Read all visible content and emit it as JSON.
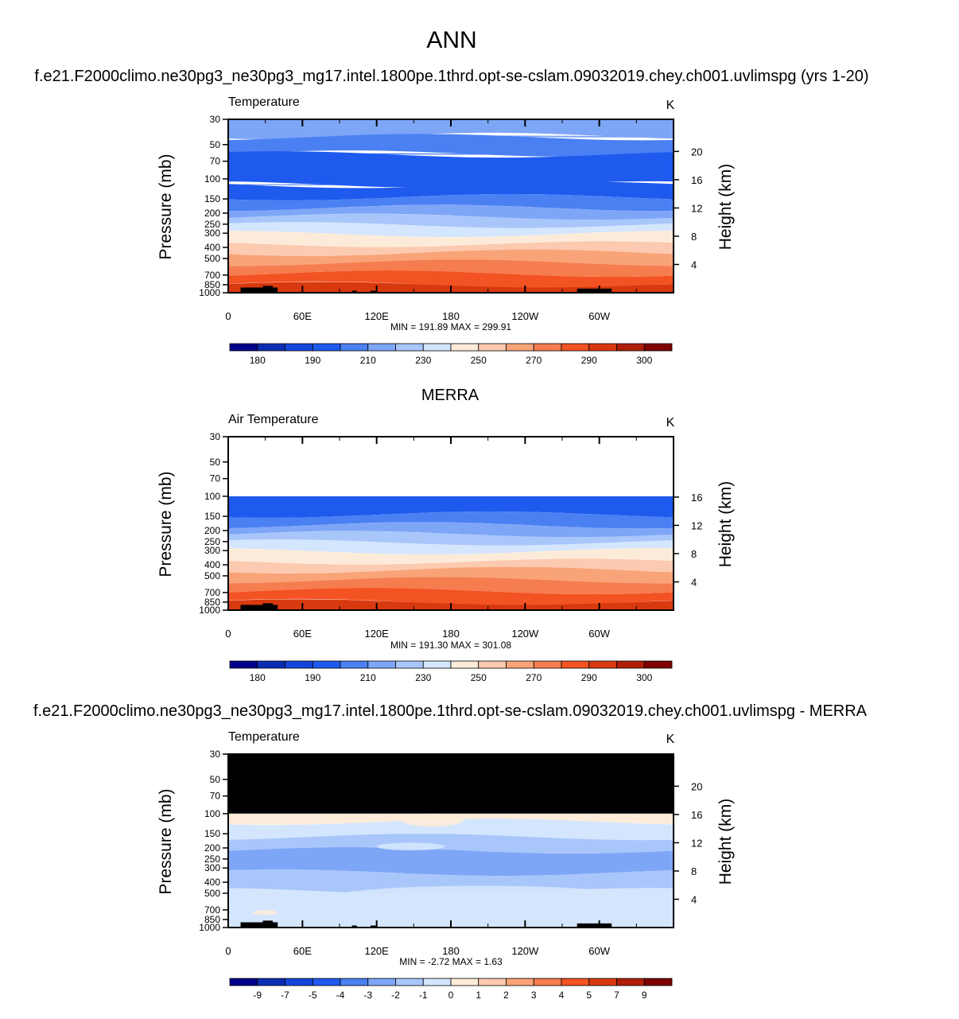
{
  "page": {
    "title": "ANN",
    "case_title": "f.e21.F2000climo.ne30pg3_ne30pg3_mg17.intel.1800pe.1thrd.opt-se-cslam.09032019.chey.ch001.uvlimspg (yrs 1-20)",
    "obs_title": "MERRA",
    "diff_title": "f.e21.F2000climo.ne30pg3_ne30pg3_mg17.intel.1800pe.1thrd.opt-se-cslam.09032019.chey.ch001.uvlimspg - MERRA"
  },
  "colors": {
    "palette": [
      "#00008b",
      "#0a2db4",
      "#1446dc",
      "#1e5aee",
      "#4a80f2",
      "#7ea6f7",
      "#a9c6fb",
      "#d4e6fd",
      "#fdebd9",
      "#fccab0",
      "#f9a478",
      "#f57d4f",
      "#f35222",
      "#d9390f",
      "#b01e08",
      "#7f0000"
    ],
    "black": "#000000"
  },
  "chart_data": [
    {
      "type": "contour",
      "panel": "top",
      "left_label": "Temperature",
      "units": "K",
      "ylabel": "Pressure (mb)",
      "y2label": "Height (km)",
      "x_ticks": [
        "0",
        "60E",
        "120E",
        "180",
        "120W",
        "60W"
      ],
      "x_range": [
        0,
        360
      ],
      "y_ticks": [
        "30",
        "50",
        "70",
        "100",
        "150",
        "200",
        "250",
        "300",
        "400",
        "500",
        "700",
        "850",
        "1000"
      ],
      "y_scale": "log",
      "y_range": [
        30,
        1000
      ],
      "height_ticks": [
        "20",
        "16",
        "12",
        "8",
        "4"
      ],
      "height_values_km": [
        20,
        16,
        12,
        8,
        4
      ],
      "stats": "MIN = 191.89  MAX = 299.91",
      "min": 191.89,
      "max": 299.91,
      "colorbar_labels": [
        "180",
        "190",
        "210",
        "230",
        "250",
        "270",
        "290",
        "300"
      ],
      "bands": [
        {
          "p": 30,
          "i": 5
        },
        {
          "p": 42,
          "i": 5
        },
        {
          "p": 43,
          "i": 4
        },
        {
          "p": 60,
          "i": 4
        },
        {
          "p": 61,
          "i": 3
        },
        {
          "p": 112,
          "i": 3
        },
        {
          "p": 113,
          "i": 3
        },
        {
          "p": 145,
          "i": 4
        },
        {
          "p": 180,
          "i": 5
        },
        {
          "p": 215,
          "i": 6
        },
        {
          "p": 255,
          "i": 7
        },
        {
          "p": 305,
          "i": 8
        },
        {
          "p": 375,
          "i": 9
        },
        {
          "p": 445,
          "i": 10
        },
        {
          "p": 545,
          "i": 11
        },
        {
          "p": 680,
          "i": 12
        },
        {
          "p": 850,
          "i": 13
        },
        {
          "p": 1000,
          "i": 13
        }
      ]
    },
    {
      "type": "contour",
      "panel": "middle",
      "title": "MERRA",
      "left_label": "Air Temperature",
      "units": "K",
      "ylabel": "Pressure (mb)",
      "y2label": "Height (km)",
      "x_ticks": [
        "0",
        "60E",
        "120E",
        "180",
        "120W",
        "60W"
      ],
      "x_range": [
        0,
        360
      ],
      "y_ticks": [
        "30",
        "50",
        "70",
        "100",
        "150",
        "200",
        "250",
        "300",
        "400",
        "500",
        "700",
        "850",
        "1000"
      ],
      "y_scale": "log",
      "y_range": [
        30,
        1000
      ],
      "height_ticks": [
        "16",
        "12",
        "8",
        "4"
      ],
      "height_values_km": [
        16,
        12,
        8,
        4
      ],
      "missing_above_mb": 100,
      "stats": "MIN = 191.30  MAX = 301.08",
      "min": 191.3,
      "max": 301.08,
      "colorbar_labels": [
        "180",
        "190",
        "210",
        "230",
        "250",
        "270",
        "290",
        "300"
      ],
      "bands": [
        {
          "p": 100,
          "i": 3
        },
        {
          "p": 145,
          "i": 4
        },
        {
          "p": 180,
          "i": 5
        },
        {
          "p": 215,
          "i": 6
        },
        {
          "p": 255,
          "i": 7
        },
        {
          "p": 305,
          "i": 8
        },
        {
          "p": 375,
          "i": 9
        },
        {
          "p": 445,
          "i": 10
        },
        {
          "p": 545,
          "i": 11
        },
        {
          "p": 680,
          "i": 12
        },
        {
          "p": 850,
          "i": 13
        },
        {
          "p": 1000,
          "i": 13
        }
      ]
    },
    {
      "type": "contour",
      "panel": "bottom",
      "left_label": "Temperature",
      "units": "K",
      "ylabel": "Pressure (mb)",
      "y2label": "Height (km)",
      "x_ticks": [
        "0",
        "60E",
        "120E",
        "180",
        "120W",
        "60W"
      ],
      "x_range": [
        0,
        360
      ],
      "y_ticks": [
        "30",
        "50",
        "70",
        "100",
        "150",
        "200",
        "250",
        "300",
        "400",
        "500",
        "700",
        "850",
        "1000"
      ],
      "y_scale": "log",
      "y_range": [
        30,
        1000
      ],
      "height_ticks": [
        "20",
        "16",
        "12",
        "8",
        "4"
      ],
      "height_values_km": [
        20,
        16,
        12,
        8,
        4
      ],
      "missing_above_mb": 100,
      "stats": "MIN =  -2.72  MAX =   1.63",
      "min": -2.72,
      "max": 1.63,
      "colorbar_labels": [
        "-9",
        "-7",
        "-5",
        "-4",
        "-3",
        "-2",
        "-1",
        "0",
        "1",
        "2",
        "3",
        "4",
        "5",
        "7",
        "9"
      ],
      "bands": [
        {
          "p": 100,
          "i": 8
        },
        {
          "p": 118,
          "i": 7
        },
        {
          "p": 160,
          "i": 6
        },
        {
          "p": 210,
          "i": 5
        },
        {
          "p": 330,
          "i": 6
        },
        {
          "p": 480,
          "i": 7
        },
        {
          "p": 1000,
          "i": 7
        }
      ]
    }
  ]
}
